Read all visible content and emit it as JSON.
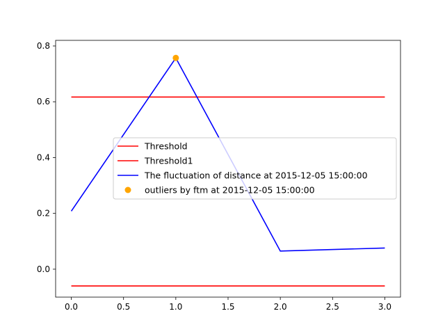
{
  "chart_data": {
    "type": "line",
    "xlim": [
      -0.15,
      3.15
    ],
    "ylim": [
      -0.1,
      0.82
    ],
    "x_ticks": [
      "0.0",
      "0.5",
      "1.0",
      "1.5",
      "2.0",
      "2.5",
      "3.0"
    ],
    "y_ticks": [
      "0.0",
      "0.2",
      "0.4",
      "0.6",
      "0.8"
    ],
    "grid": false,
    "legend_position": "center",
    "series": [
      {
        "name": "Threshold",
        "kind": "line",
        "color": "#ff0000",
        "x": [
          0,
          3
        ],
        "y": [
          0.617,
          0.617
        ]
      },
      {
        "name": "Threshold1",
        "kind": "line",
        "color": "#ff0000",
        "x": [
          0,
          3
        ],
        "y": [
          -0.06,
          -0.06
        ]
      },
      {
        "name": "The fluctuation of distance at 2015-12-05 15:00:00",
        "kind": "line",
        "color": "#0000ff",
        "x": [
          0,
          1,
          2,
          3
        ],
        "y": [
          0.208,
          0.757,
          0.065,
          0.076
        ]
      },
      {
        "name": "outliers by ftm at 2015-12-05 15:00:00",
        "kind": "scatter",
        "color": "#ffa500",
        "x": [
          1
        ],
        "y": [
          0.757
        ]
      }
    ]
  }
}
